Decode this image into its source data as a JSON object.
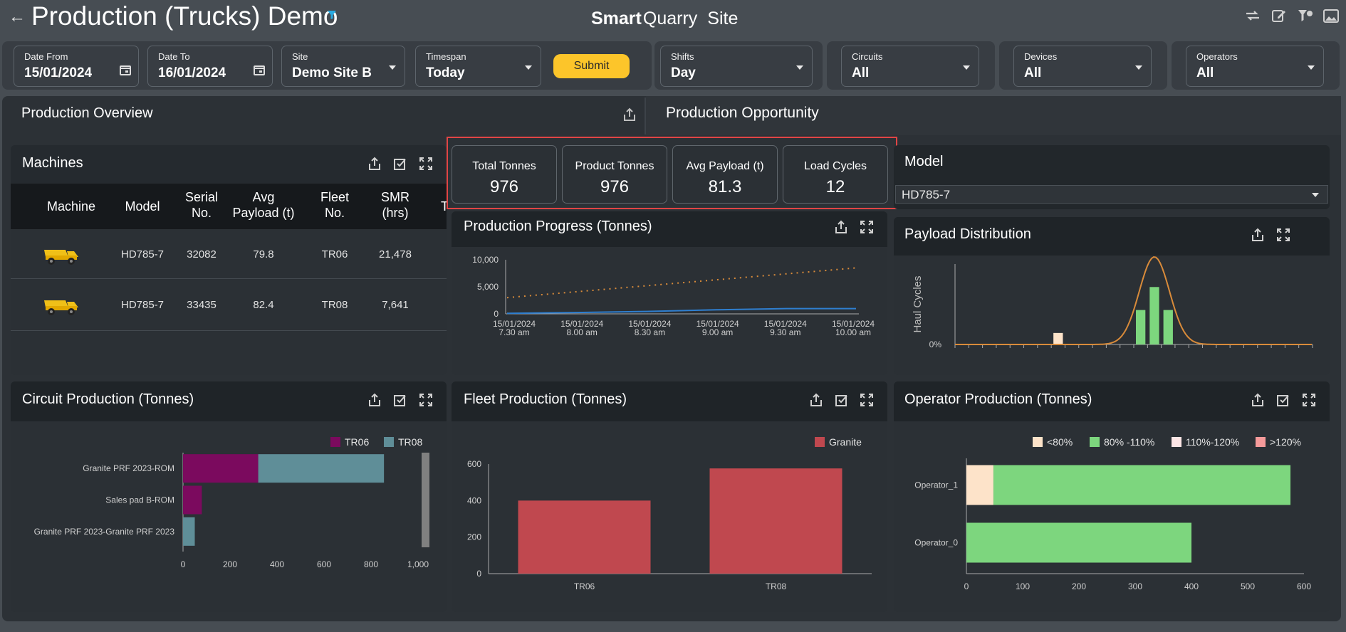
{
  "header": {
    "title": "Production (Trucks) Demo",
    "brand_bold": "Smart",
    "brand_regular": "Quarry",
    "brand_site": "Site"
  },
  "filters": {
    "date_from": {
      "label": "Date From",
      "value": "15/01/2024"
    },
    "date_to": {
      "label": "Date To",
      "value": "16/01/2024"
    },
    "site": {
      "label": "Site",
      "value": "Demo Site B"
    },
    "timespan": {
      "label": "Timespan",
      "value": "Today"
    },
    "submit_label": "Submit",
    "shifts": {
      "label": "Shifts",
      "value": "Day"
    },
    "circuits": {
      "label": "Circuits",
      "value": "All"
    },
    "devices": {
      "label": "Devices",
      "value": "All"
    },
    "operators": {
      "label": "Operators",
      "value": "All"
    }
  },
  "tabs": {
    "overview": "Production Overview",
    "opportunity": "Production Opportunity"
  },
  "machines": {
    "title": "Machines",
    "columns": [
      "Machine",
      "Model",
      "Serial No.",
      "Avg Payload (t)",
      "Fleet No.",
      "SMR (hrs)"
    ],
    "rows": [
      {
        "model": "HD785-7",
        "serial": "32082",
        "payload": "79.8",
        "fleet": "TR06",
        "smr": "21,478"
      },
      {
        "model": "HD785-7",
        "serial": "33435",
        "payload": "82.4",
        "fleet": "TR08",
        "smr": "7,641"
      }
    ]
  },
  "kpis": [
    {
      "label": "Total Tonnes",
      "value": "976"
    },
    {
      "label": "Product Tonnes",
      "value": "976"
    },
    {
      "label": "Avg Payload (t)",
      "value": "81.3"
    },
    {
      "label": "Load Cycles",
      "value": "12"
    }
  ],
  "model_select": {
    "label": "Model",
    "value": "HD785-7"
  },
  "panels": {
    "progress": "Production Progress (Tonnes)",
    "payload": "Payload Distribution",
    "circuit": "Circuit Production (Tonnes)",
    "fleet": "Fleet Production (Tonnes)",
    "operator": "Operator Production (Tonnes)"
  },
  "colors": {
    "accent": "#fcc52a",
    "tr06": "#7b0a5e",
    "tr08": "#5f8e98",
    "granite": "#c0484f",
    "green": "#7dd67e",
    "under80": "#fde3c9",
    "r110_120": "#fde6e6",
    "over120": "#f59a9a",
    "highlight": "#e14545"
  },
  "chart_data": [
    {
      "type": "line",
      "title": "Production Progress (Tonnes)",
      "x_ticks": [
        "15/01/2024 7.30 am",
        "15/01/2024 8.00 am",
        "15/01/2024 8.30 am",
        "15/01/2024 9.00 am",
        "15/01/2024 9.30 am",
        "15/01/2024 10.00 am"
      ],
      "y_ticks": [
        "0",
        "5,000",
        "10,000"
      ],
      "ylim": [
        0,
        10000
      ],
      "series": [
        {
          "style": "dotted",
          "color": "#d98b3a",
          "values": [
            3000,
            4100,
            5200,
            6300,
            7400,
            8500
          ]
        },
        {
          "style": "solid",
          "color": "#2f7fd0",
          "values": [
            100,
            250,
            450,
            750,
            976,
            976
          ]
        }
      ]
    },
    {
      "type": "bar",
      "title": "Payload Distribution",
      "ylabel": "Haul Cycles",
      "y_ticks": [
        "0%"
      ],
      "bins": [
        {
          "bin": 8,
          "value": 1,
          "color": "#fde3c9"
        },
        {
          "bin": 14,
          "value": 3,
          "color": "#7dd67e"
        },
        {
          "bin": 15,
          "value": 5,
          "color": "#7dd67e"
        },
        {
          "bin": 16,
          "value": 3,
          "color": "#7dd67e"
        }
      ],
      "bin_count": 26,
      "ylim": [
        0,
        7
      ]
    },
    {
      "type": "bar",
      "orientation": "horizontal",
      "stacked": true,
      "title": "Circuit Production (Tonnes)",
      "categories": [
        "Granite PRF 2023-ROM",
        "Sales pad B-ROM",
        "Granite PRF 2023-Granite PRF 2023"
      ],
      "series": [
        {
          "name": "TR06",
          "values": [
            320,
            80,
            0
          ]
        },
        {
          "name": "TR08",
          "values": [
            535,
            0,
            50
          ]
        }
      ],
      "x_ticks": [
        "0",
        "200",
        "400",
        "600",
        "800",
        "1,000"
      ],
      "xlim": [
        0,
        1000
      ]
    },
    {
      "type": "bar",
      "title": "Fleet Production (Tonnes)",
      "categories": [
        "TR06",
        "TR08"
      ],
      "series": [
        {
          "name": "Granite",
          "values": [
            400,
            576
          ]
        }
      ],
      "y_ticks": [
        "0",
        "200",
        "400",
        "600"
      ],
      "ylim": [
        0,
        600
      ]
    },
    {
      "type": "bar",
      "orientation": "horizontal",
      "stacked": true,
      "title": "Operator Production (Tonnes)",
      "categories": [
        "Operator_1",
        "Operator_0"
      ],
      "series": [
        {
          "name": "<80%",
          "values": [
            48,
            0
          ]
        },
        {
          "name": "80% -110%",
          "values": [
            528,
            400
          ]
        },
        {
          "name": "110%-120%",
          "values": [
            0,
            0
          ]
        },
        {
          "name": ">120%",
          "values": [
            0,
            0
          ]
        }
      ],
      "x_ticks": [
        "0",
        "100",
        "200",
        "300",
        "400",
        "500",
        "600"
      ],
      "xlim": [
        0,
        600
      ]
    }
  ]
}
